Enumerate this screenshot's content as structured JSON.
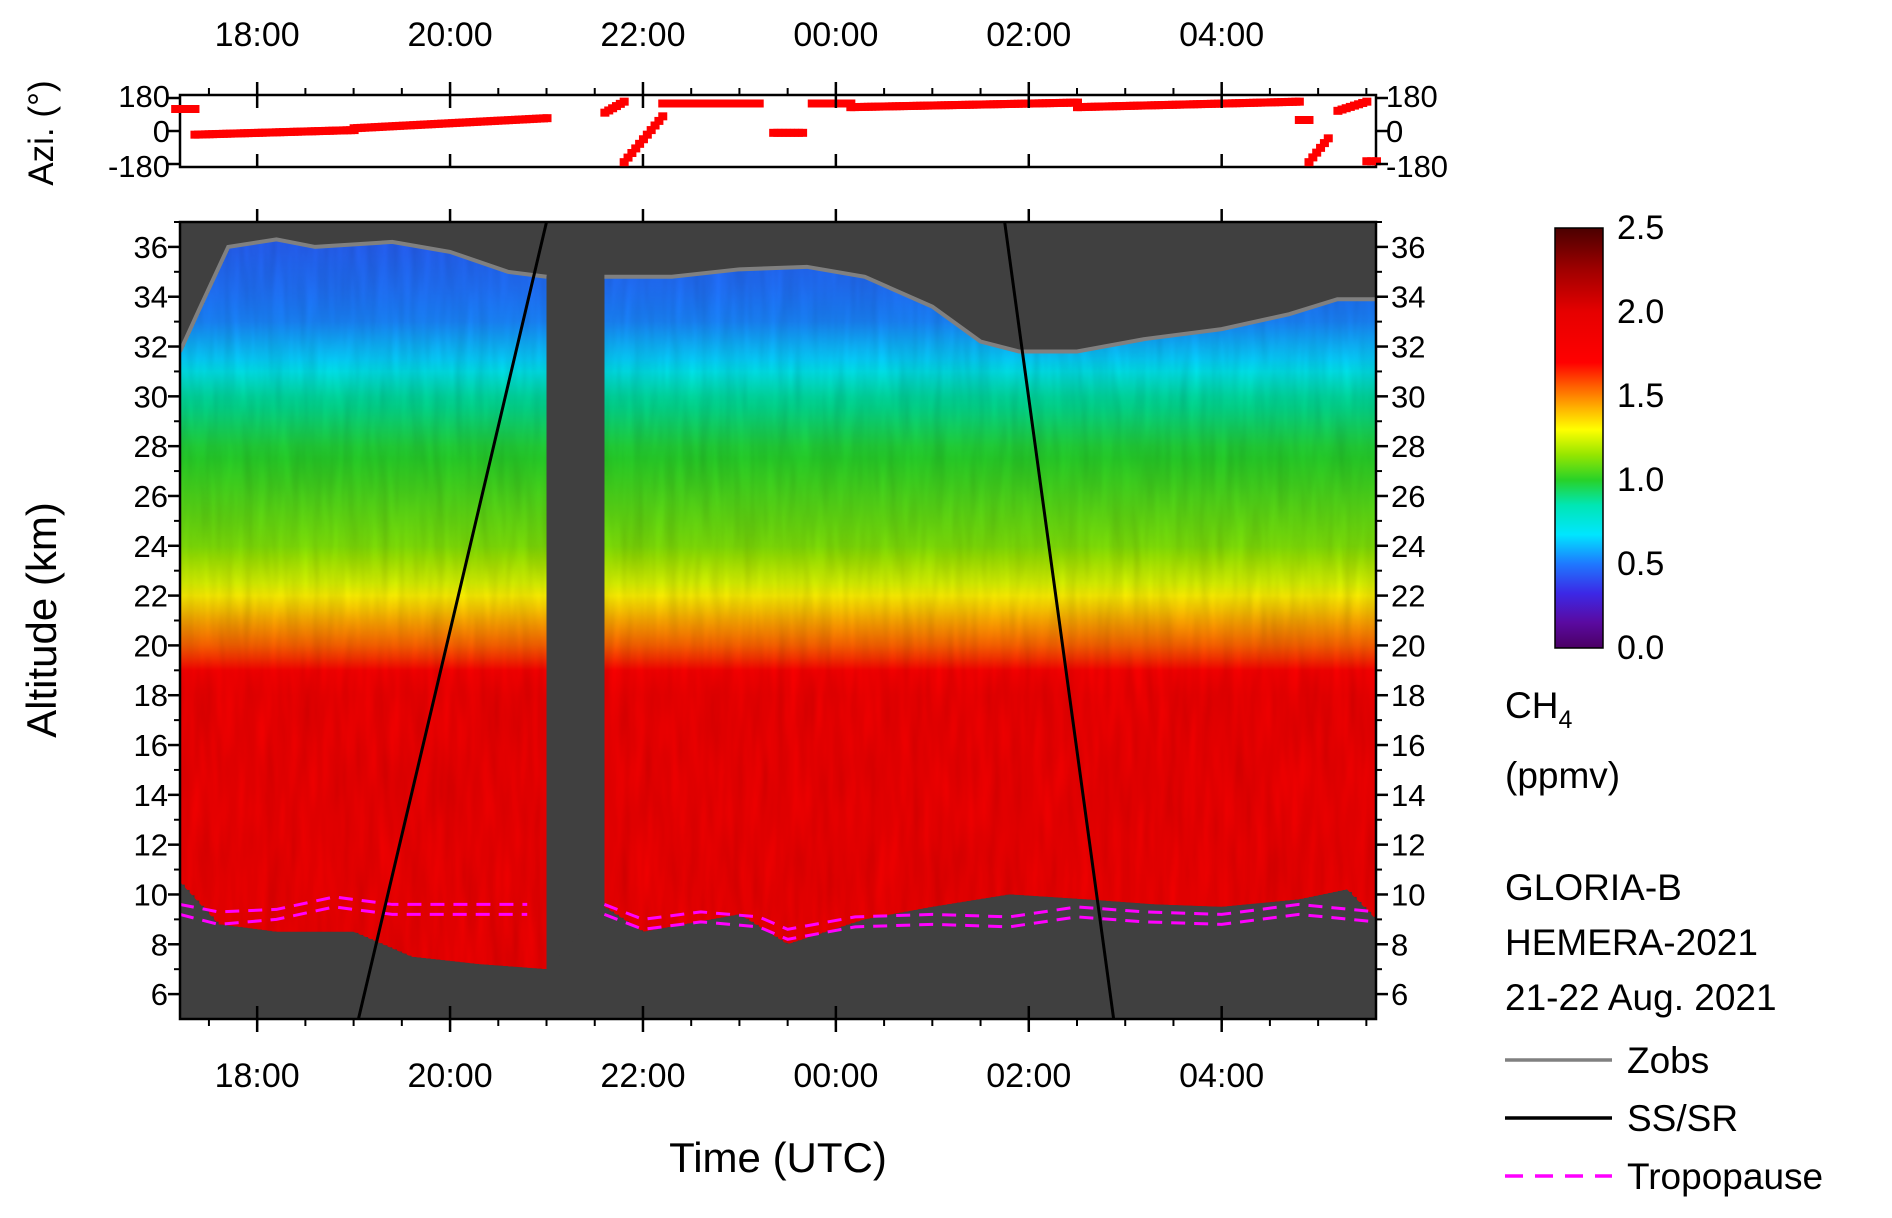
{
  "chart_data": [
    {
      "type": "scatter",
      "panel": "azimuth",
      "ylabel": "Azi. (°)",
      "ylim": [
        -180,
        180
      ],
      "y_ticks": [
        "180",
        "0",
        "-180"
      ],
      "x_time_ticks": [
        "18:00",
        "20:00",
        "22:00",
        "00:00",
        "02:00",
        "04:00"
      ],
      "marker_color": "#ff0000",
      "segments": [
        {
          "t0": 17.15,
          "t1": 17.35,
          "y0": 120,
          "y1": 120
        },
        {
          "t0": 17.35,
          "t1": 19.0,
          "y0": -20,
          "y1": 5
        },
        {
          "t0": 19.0,
          "t1": 21.0,
          "y0": 15,
          "y1": 70
        },
        {
          "t0": 21.6,
          "t1": 21.8,
          "y0": 100,
          "y1": 160
        },
        {
          "t0": 21.8,
          "t1": 22.2,
          "y0": -170,
          "y1": 80
        },
        {
          "t0": 22.2,
          "t1": 22.9,
          "y0": 150,
          "y1": 150
        },
        {
          "t0": 22.9,
          "t1": 23.2,
          "y0": 150,
          "y1": 150
        },
        {
          "t0": 23.35,
          "t1": 23.65,
          "y0": -10,
          "y1": -10
        },
        {
          "t0": 23.75,
          "t1": 24.15,
          "y0": 150,
          "y1": 150
        },
        {
          "t0": 24.15,
          "t1": 26.5,
          "y0": 130,
          "y1": 155
        },
        {
          "t0": 26.5,
          "t1": 28.8,
          "y0": 130,
          "y1": 160
        },
        {
          "t0": 28.8,
          "t1": 28.9,
          "y0": 60,
          "y1": 60
        },
        {
          "t0": 28.9,
          "t1": 29.1,
          "y0": -170,
          "y1": -40
        },
        {
          "t0": 29.2,
          "t1": 29.5,
          "y0": 110,
          "y1": 160
        },
        {
          "t0": 29.5,
          "t1": 29.6,
          "y0": -165,
          "y1": -165
        }
      ]
    },
    {
      "type": "heatmap",
      "panel": "ch4",
      "xlabel": "Time (UTC)",
      "ylabel": "Altitude (km)",
      "x_time_ticks": [
        "18:00",
        "20:00",
        "22:00",
        "00:00",
        "02:00",
        "04:00"
      ],
      "xlim_hours": [
        17.2,
        29.6
      ],
      "ylim": [
        5,
        37
      ],
      "y_ticks": [
        "6",
        "8",
        "10",
        "12",
        "14",
        "16",
        "18",
        "20",
        "22",
        "24",
        "26",
        "28",
        "30",
        "32",
        "34",
        "36"
      ],
      "data_gap_hours": [
        21.0,
        21.6
      ],
      "colorbar": {
        "ticks": [
          "0.0",
          "0.5",
          "1.0",
          "1.5",
          "2.0",
          "2.5"
        ],
        "range": [
          0.0,
          2.5
        ],
        "label_main": "CH",
        "label_sub": "4",
        "label_unit": "(ppmv)"
      },
      "vertical_profile_ch4": [
        {
          "alt": 5,
          "ch4": 1.9
        },
        {
          "alt": 10,
          "ch4": 1.88
        },
        {
          "alt": 18,
          "ch4": 1.85
        },
        {
          "alt": 19.5,
          "ch4": 1.62
        },
        {
          "alt": 21,
          "ch4": 1.42
        },
        {
          "alt": 22.5,
          "ch4": 1.2
        },
        {
          "alt": 24,
          "ch4": 1.07
        },
        {
          "alt": 26,
          "ch4": 1.0
        },
        {
          "alt": 28,
          "ch4": 0.93
        },
        {
          "alt": 30,
          "ch4": 0.8
        },
        {
          "alt": 31.5,
          "ch4": 0.62
        },
        {
          "alt": 33,
          "ch4": 0.52
        },
        {
          "alt": 36,
          "ch4": 0.45
        }
      ],
      "zobs": [
        {
          "t": 17.2,
          "alt": 31.8
        },
        {
          "t": 17.4,
          "alt": 33.5
        },
        {
          "t": 17.7,
          "alt": 36.0
        },
        {
          "t": 18.2,
          "alt": 36.3
        },
        {
          "t": 18.6,
          "alt": 36.0
        },
        {
          "t": 19.4,
          "alt": 36.2
        },
        {
          "t": 20.0,
          "alt": 35.8
        },
        {
          "t": 20.6,
          "alt": 35.0
        },
        {
          "t": 21.0,
          "alt": 34.8
        },
        {
          "t": 21.6,
          "alt": 34.8
        },
        {
          "t": 22.3,
          "alt": 34.8
        },
        {
          "t": 23.0,
          "alt": 35.1
        },
        {
          "t": 23.7,
          "alt": 35.2
        },
        {
          "t": 24.3,
          "alt": 34.8
        },
        {
          "t": 25.0,
          "alt": 33.6
        },
        {
          "t": 25.5,
          "alt": 32.2
        },
        {
          "t": 25.9,
          "alt": 31.8
        },
        {
          "t": 26.5,
          "alt": 31.8
        },
        {
          "t": 27.2,
          "alt": 32.3
        },
        {
          "t": 28.0,
          "alt": 32.7
        },
        {
          "t": 28.7,
          "alt": 33.3
        },
        {
          "t": 29.2,
          "alt": 33.9
        },
        {
          "t": 29.6,
          "alt": 33.9
        }
      ],
      "ss_sr": [
        {
          "t0": 19.05,
          "alt0": 5,
          "t1": 21.0,
          "alt1": 37
        },
        {
          "t0": 25.75,
          "alt0": 37,
          "t1": 26.88,
          "alt1": 5
        }
      ],
      "tropopause_lower": [
        {
          "t": 17.2,
          "alt": 9.2
        },
        {
          "t": 17.6,
          "alt": 8.8
        },
        {
          "t": 18.2,
          "alt": 9.0
        },
        {
          "t": 18.8,
          "alt": 9.5
        },
        {
          "t": 19.4,
          "alt": 9.2
        },
        {
          "t": 20.0,
          "alt": 9.2
        },
        {
          "t": 20.8,
          "alt": 9.2
        },
        {
          "t": 21.6,
          "alt": 9.2
        },
        {
          "t": 22.0,
          "alt": 8.6
        },
        {
          "t": 22.6,
          "alt": 8.9
        },
        {
          "t": 23.2,
          "alt": 8.7
        },
        {
          "t": 23.5,
          "alt": 8.2
        },
        {
          "t": 24.2,
          "alt": 8.7
        },
        {
          "t": 25.0,
          "alt": 8.8
        },
        {
          "t": 25.8,
          "alt": 8.7
        },
        {
          "t": 26.5,
          "alt": 9.1
        },
        {
          "t": 27.2,
          "alt": 8.9
        },
        {
          "t": 28.0,
          "alt": 8.8
        },
        {
          "t": 28.8,
          "alt": 9.2
        },
        {
          "t": 29.6,
          "alt": 8.9
        }
      ],
      "tropopause_upper": [
        {
          "t": 17.2,
          "alt": 9.6
        },
        {
          "t": 17.6,
          "alt": 9.3
        },
        {
          "t": 18.2,
          "alt": 9.4
        },
        {
          "t": 18.8,
          "alt": 9.9
        },
        {
          "t": 19.4,
          "alt": 9.6
        },
        {
          "t": 20.0,
          "alt": 9.6
        },
        {
          "t": 20.8,
          "alt": 9.6
        },
        {
          "t": 21.6,
          "alt": 9.6
        },
        {
          "t": 22.0,
          "alt": 9.0
        },
        {
          "t": 22.6,
          "alt": 9.3
        },
        {
          "t": 23.2,
          "alt": 9.1
        },
        {
          "t": 23.5,
          "alt": 8.6
        },
        {
          "t": 24.2,
          "alt": 9.1
        },
        {
          "t": 25.0,
          "alt": 9.2
        },
        {
          "t": 25.8,
          "alt": 9.1
        },
        {
          "t": 26.5,
          "alt": 9.5
        },
        {
          "t": 27.2,
          "alt": 9.3
        },
        {
          "t": 28.0,
          "alt": 9.2
        },
        {
          "t": 28.8,
          "alt": 9.6
        },
        {
          "t": 29.6,
          "alt": 9.3
        }
      ],
      "lower_data_boundary": [
        {
          "t": 17.2,
          "alt": 10.5
        },
        {
          "t": 17.6,
          "alt": 8.8
        },
        {
          "t": 18.2,
          "alt": 8.5
        },
        {
          "t": 19.0,
          "alt": 8.5
        },
        {
          "t": 19.6,
          "alt": 7.5
        },
        {
          "t": 20.3,
          "alt": 7.2
        },
        {
          "t": 21.0,
          "alt": 7.0
        },
        {
          "t": 21.6,
          "alt": 9.5
        },
        {
          "t": 22.0,
          "alt": 8.5
        },
        {
          "t": 23.0,
          "alt": 9.2
        },
        {
          "t": 23.5,
          "alt": 8.0
        },
        {
          "t": 24.3,
          "alt": 9.0
        },
        {
          "t": 25.0,
          "alt": 9.5
        },
        {
          "t": 25.8,
          "alt": 10.0
        },
        {
          "t": 26.6,
          "alt": 9.8
        },
        {
          "t": 27.3,
          "alt": 9.6
        },
        {
          "t": 28.0,
          "alt": 9.5
        },
        {
          "t": 28.8,
          "alt": 9.8
        },
        {
          "t": 29.3,
          "alt": 10.2
        },
        {
          "t": 29.6,
          "alt": 9.0
        }
      ]
    }
  ],
  "annotations": {
    "lines": [
      "GLORIA-B",
      "HEMERA-2021",
      "21-22 Aug. 2021"
    ]
  },
  "legend": [
    {
      "label": "Zobs",
      "color": "#808080",
      "style": "solid"
    },
    {
      "label": "SS/SR",
      "color": "#000000",
      "style": "solid"
    },
    {
      "label": "Tropopause",
      "color": "#ff00ff",
      "style": "dashed"
    }
  ],
  "colors": {
    "masked_background": "#404040",
    "zobs": "#808080",
    "ss_sr": "#000000",
    "tropopause": "#ff00ff",
    "azimuth_marker": "#ff0000"
  }
}
